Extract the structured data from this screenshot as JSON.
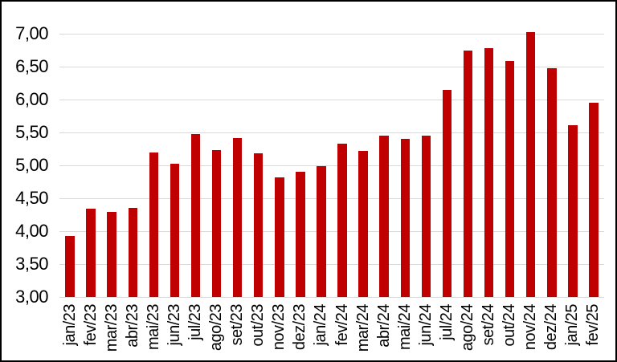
{
  "chart_data": {
    "type": "bar",
    "title": "",
    "xlabel": "",
    "ylabel": "",
    "categories": [
      "jan/23",
      "fev/23",
      "mar/23",
      "abr/23",
      "mai/23",
      "jun/23",
      "jul/23",
      "ago/23",
      "set/23",
      "out/23",
      "nov/23",
      "dez/23",
      "jan/24",
      "fev/24",
      "mar/24",
      "abr/24",
      "mai/24",
      "jun/24",
      "jul/24",
      "ago/24",
      "set/24",
      "out/24",
      "nov/24",
      "dez/24",
      "jan/25",
      "fev/25"
    ],
    "values": [
      3.93,
      4.34,
      4.29,
      4.35,
      5.19,
      5.03,
      5.47,
      5.23,
      5.42,
      5.18,
      4.82,
      4.9,
      4.99,
      5.33,
      5.22,
      5.45,
      5.4,
      5.45,
      6.15,
      6.74,
      6.78,
      6.59,
      7.02,
      6.47,
      5.61,
      5.95
    ],
    "ylim": [
      3.0,
      7.0
    ],
    "y_ticks": [
      {
        "value": 3.0,
        "label": "3,00"
      },
      {
        "value": 3.5,
        "label": "3,50"
      },
      {
        "value": 4.0,
        "label": "4,00"
      },
      {
        "value": 4.5,
        "label": "4,50"
      },
      {
        "value": 5.0,
        "label": "5,00"
      },
      {
        "value": 5.5,
        "label": "5,50"
      },
      {
        "value": 6.0,
        "label": "6,00"
      },
      {
        "value": 6.5,
        "label": "6,50"
      },
      {
        "value": 7.0,
        "label": "7,00"
      }
    ],
    "x_tick_rotation": 90,
    "grid": "horizontal",
    "legend_position": "none",
    "colors": {
      "bar": "#C00000",
      "gridline": "#D9D9D9",
      "text": "#000000",
      "background": "#FFFFFF",
      "frame_border": "#000000"
    }
  }
}
